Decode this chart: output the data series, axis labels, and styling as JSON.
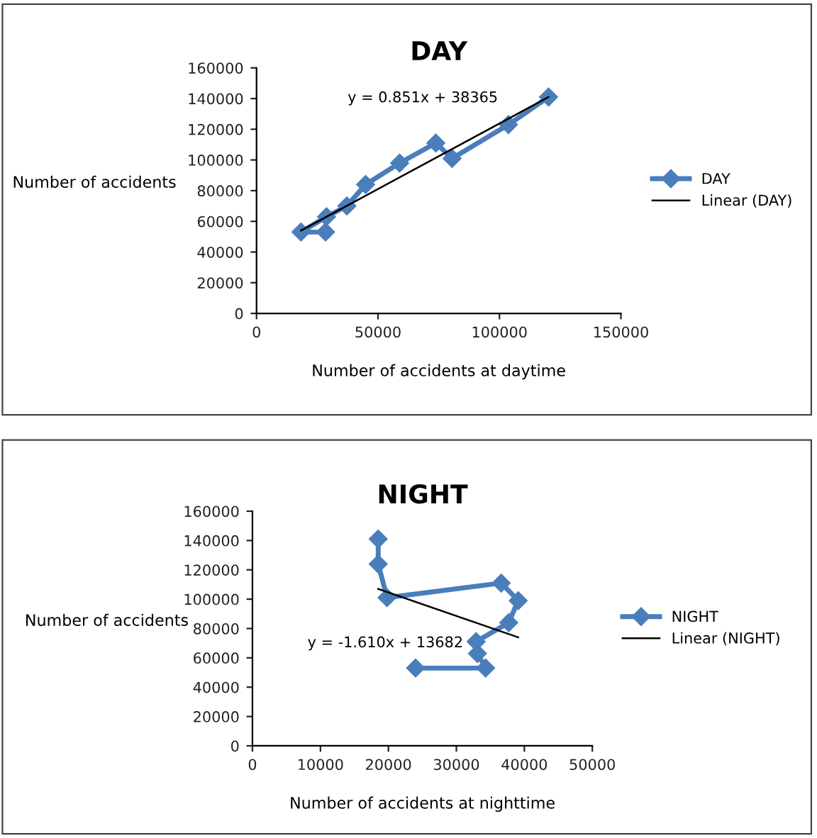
{
  "chart_data": [
    {
      "type": "line",
      "title": "DAY",
      "xlabel": "Number of accidents at daytime",
      "ylabel": "Number of accidents",
      "xlim": [
        0,
        150000
      ],
      "ylim": [
        0,
        160000
      ],
      "xticks": [
        0,
        50000,
        100000,
        150000
      ],
      "yticks": [
        0,
        20000,
        40000,
        60000,
        80000,
        100000,
        120000,
        140000,
        160000
      ],
      "legend": "right",
      "grid": false,
      "annotations": [
        "y = 0.851x + 38365"
      ],
      "series": [
        {
          "name": "DAY",
          "color": "#4a7ebb",
          "marker": "diamond",
          "x": [
            120200,
            103700,
            80500,
            73800,
            58900,
            44900,
            37200,
            28800,
            18300,
            28400
          ],
          "values": [
            141000,
            123000,
            101000,
            111000,
            98000,
            84000,
            70000,
            63000,
            53000,
            53000
          ]
        },
        {
          "name": "Linear (DAY)",
          "color": "#000000",
          "marker": "none",
          "x": [
            18300,
            120200
          ],
          "values": [
            54000,
            141000
          ]
        }
      ]
    },
    {
      "type": "line",
      "title": "NIGHT",
      "xlabel": "Number of accidents at nighttime",
      "ylabel": "Number of accidents",
      "xlim": [
        0,
        50000
      ],
      "ylim": [
        0,
        160000
      ],
      "xticks": [
        0,
        10000,
        20000,
        30000,
        40000,
        50000
      ],
      "yticks": [
        0,
        20000,
        40000,
        60000,
        80000,
        100000,
        120000,
        140000,
        160000
      ],
      "legend": "right",
      "grid": false,
      "annotations": [
        "y = -1.610x + 13682"
      ],
      "series": [
        {
          "name": "NIGHT",
          "color": "#4a7ebb",
          "marker": "diamond",
          "x": [
            18500,
            18500,
            19800,
            36600,
            39100,
            37700,
            32900,
            33100,
            34300,
            24000
          ],
          "values": [
            141000,
            124000,
            101000,
            111000,
            99000,
            84000,
            71000,
            63000,
            53000,
            53000
          ]
        },
        {
          "name": "Linear (NIGHT)",
          "color": "#000000",
          "marker": "none",
          "x": [
            18500,
            39100
          ],
          "values": [
            107000,
            74000
          ]
        }
      ]
    }
  ]
}
